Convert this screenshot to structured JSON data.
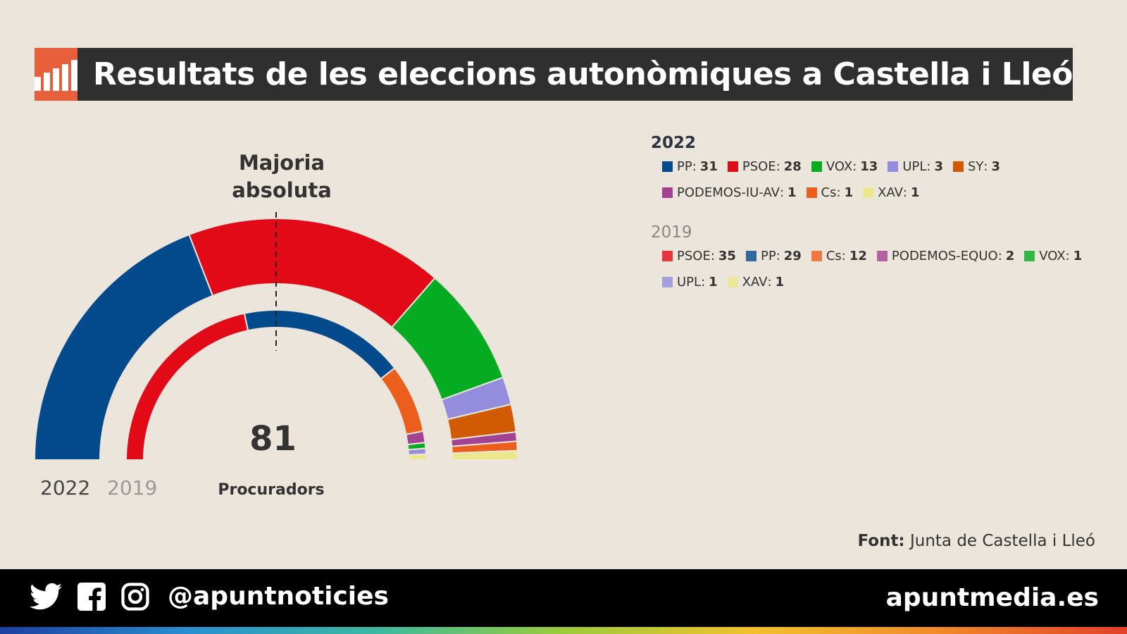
{
  "title": "Resultats de les eleccions autonòmiques a Castella i Lleó",
  "logo_icon": "bar-chart-icon",
  "chart_data": {
    "type": "parliament-semicircle",
    "total_seats": 81,
    "total_label": "Procuradors",
    "majority_label_line1": "Majoria",
    "majority_label_line2": "absoluta",
    "majority_seats": 41,
    "ring_labels": [
      "2022",
      "2019"
    ],
    "series": [
      {
        "name": "2022",
        "parties": [
          {
            "name": "PP",
            "seats": 31,
            "color": "#034a8c"
          },
          {
            "name": "PSOE",
            "seats": 28,
            "color": "#e30a18"
          },
          {
            "name": "VOX",
            "seats": 13,
            "color": "#05ac22"
          },
          {
            "name": "UPL",
            "seats": 3,
            "color": "#948ddd"
          },
          {
            "name": "SY",
            "seats": 3,
            "color": "#d05b04"
          },
          {
            "name": "PODEMOS-IU-AV",
            "seats": 1,
            "color": "#a34292"
          },
          {
            "name": "Cs",
            "seats": 1,
            "color": "#ec5e1c"
          },
          {
            "name": "XAV",
            "seats": 1,
            "color": "#ede78c"
          }
        ]
      },
      {
        "name": "2019",
        "parties": [
          {
            "name": "PSOE",
            "seats": 35,
            "color": "#e30a18"
          },
          {
            "name": "PP",
            "seats": 29,
            "color": "#034a8c"
          },
          {
            "name": "Cs",
            "seats": 12,
            "color": "#ec5e1c"
          },
          {
            "name": "PODEMOS-EQUO",
            "seats": 2,
            "color": "#a34292"
          },
          {
            "name": "VOX",
            "seats": 1,
            "color": "#05ac22"
          },
          {
            "name": "UPL",
            "seats": 1,
            "color": "#948ddd"
          },
          {
            "name": "XAV",
            "seats": 1,
            "color": "#ede78c"
          }
        ]
      }
    ]
  },
  "source_label": "Font:",
  "source_text": "Junta de Castella i Lleó",
  "footer": {
    "icons": [
      "twitter-icon",
      "facebook-icon",
      "instagram-icon"
    ],
    "handle": "@apuntnoticies",
    "site": "apuntmedia.es"
  }
}
